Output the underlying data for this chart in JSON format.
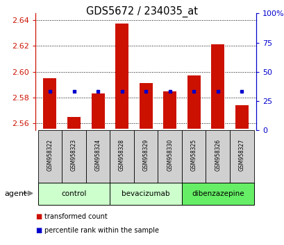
{
  "title": "GDS5672 / 234035_at",
  "samples": [
    "GSM958322",
    "GSM958323",
    "GSM958324",
    "GSM958328",
    "GSM958329",
    "GSM958330",
    "GSM958325",
    "GSM958326",
    "GSM958327"
  ],
  "transformed_counts": [
    2.595,
    2.565,
    2.583,
    2.637,
    2.591,
    2.585,
    2.597,
    2.621,
    2.574
  ],
  "percentile_ranks": [
    33,
    33,
    33,
    33,
    33,
    33,
    33,
    33,
    33
  ],
  "ylim_left": [
    2.555,
    2.645
  ],
  "ylim_right": [
    0,
    100
  ],
  "yticks_left": [
    2.56,
    2.58,
    2.6,
    2.62,
    2.64
  ],
  "yticks_right": [
    0,
    25,
    50,
    75,
    100
  ],
  "bar_color": "#cc1100",
  "percentile_color": "#0000cc",
  "bar_width": 0.55,
  "base_value": 2.556,
  "tick_color_left": "#cc1100",
  "tick_color_right": "#0000cc",
  "group_configs": [
    {
      "label": "control",
      "start": 0,
      "end": 2,
      "color": "#ccffcc"
    },
    {
      "label": "bevacizumab",
      "start": 3,
      "end": 5,
      "color": "#ccffcc"
    },
    {
      "label": "dibenzazepine",
      "start": 6,
      "end": 8,
      "color": "#66ee66"
    }
  ],
  "sample_bg_color": "#d0d0d0",
  "legend_items": [
    {
      "label": "transformed count",
      "color": "#cc1100"
    },
    {
      "label": "percentile rank within the sample",
      "color": "#0000cc"
    }
  ]
}
